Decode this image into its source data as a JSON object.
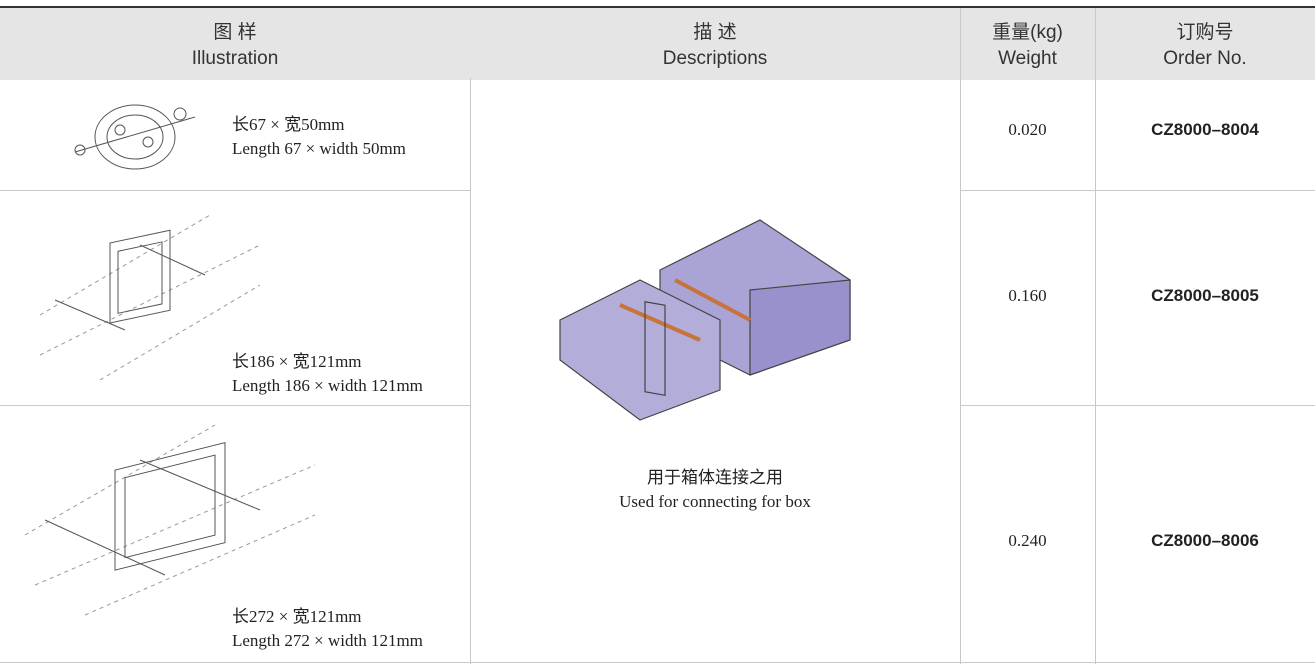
{
  "header": {
    "illustration": {
      "zh": "图 样",
      "en": "Illustration"
    },
    "descriptions": {
      "zh": "描 述",
      "en": "Descriptions"
    },
    "weight": {
      "zh": "重量(kg)",
      "en": "Weight"
    },
    "order": {
      "zh": "订购号",
      "en": "Order No."
    }
  },
  "description": {
    "zh": "用于箱体连接之用",
    "en": "Used for connecting for box"
  },
  "rows": [
    {
      "size_zh": "长67 × 宽50mm",
      "size_en": "Length 67 × width 50mm",
      "weight": "0.020",
      "order": "CZ8000–8004"
    },
    {
      "size_zh": "长186 × 宽121mm",
      "size_en": "Length 186 × width 121mm",
      "weight": "0.160",
      "order": "CZ8000–8005"
    },
    {
      "size_zh": "长272 × 宽121mm",
      "size_en": "Length 272 × width 121mm",
      "weight": "0.240",
      "order": "CZ8000–8006"
    }
  ]
}
